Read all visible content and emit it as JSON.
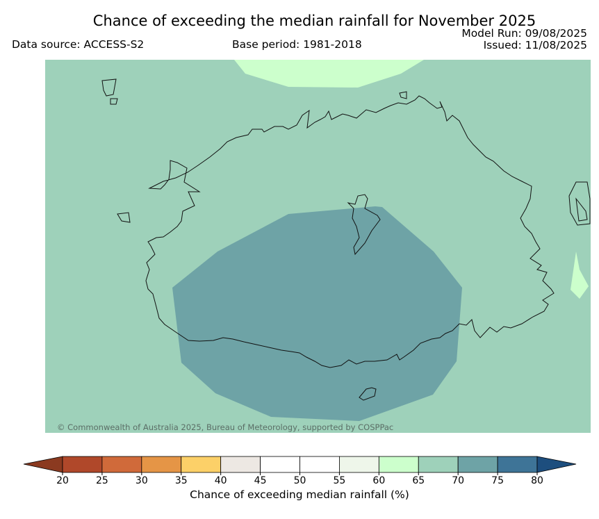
{
  "header": {
    "title": "Chance of exceeding the median rainfall for November 2025",
    "data_source": "Data source: ACCESS-S2",
    "base_period": "Base period: 1981-2018",
    "model_run": "Model Run: 09/08/2025",
    "issued": "Issued: 11/08/2025"
  },
  "map": {
    "copyright": "© Commonwealth of Australia 2025, Bureau of Meteorology, supported by COSPPac",
    "background_class": "65-70",
    "regions": [
      {
        "name": "central-south-region",
        "class": "70-75"
      },
      {
        "name": "north-region",
        "class": "60-65"
      },
      {
        "name": "east-region",
        "class": "60-65"
      }
    ]
  },
  "colorbar": {
    "label": "Chance of exceeding median rainfall (%)",
    "ticks": [
      "20",
      "25",
      "30",
      "35",
      "40",
      "45",
      "50",
      "55",
      "60",
      "65",
      "70",
      "75",
      "80"
    ],
    "under_color": "#8b3a20",
    "over_color": "#1d4e7e",
    "colors": [
      "#b0482a",
      "#d06a3a",
      "#e59546",
      "#fcd068",
      "#ede8e3",
      "#ffffff",
      "#ffffff",
      "#eef6ea",
      "#ccffcc",
      "#9ed1ba",
      "#6ea3a6",
      "#3e7497"
    ]
  }
}
